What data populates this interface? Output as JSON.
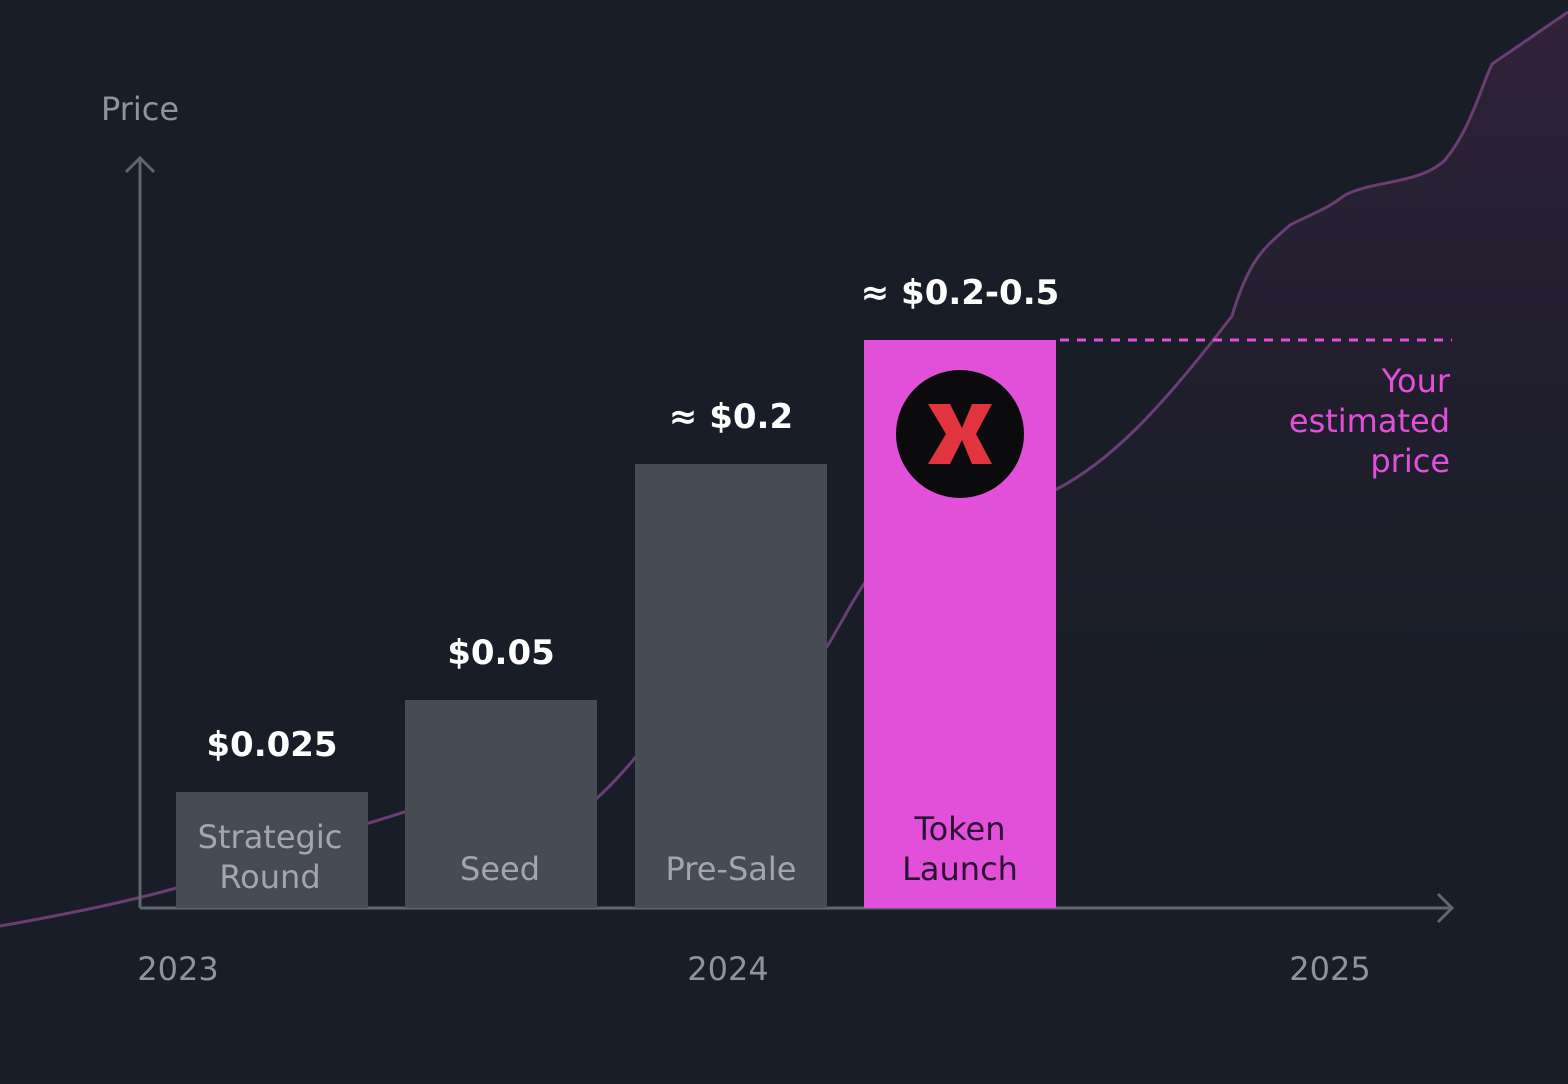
{
  "chart_data": {
    "type": "bar",
    "ylabel": "Price",
    "categories": [
      "Strategic Round",
      "Seed",
      "Pre-Sale",
      "Token Launch"
    ],
    "category_lines": [
      [
        "Strategic",
        "Round"
      ],
      [
        "Seed"
      ],
      [
        "Pre-Sale"
      ],
      [
        "Token",
        "Launch"
      ]
    ],
    "value_labels": [
      "$0.025",
      "$0.05",
      "≈ $0.2",
      "≈ $0.2-0.5"
    ],
    "values": [
      0.025,
      0.05,
      0.2,
      0.5
    ],
    "highlight_index": 3,
    "x_ticks": [
      "2023",
      "2024",
      "2025"
    ],
    "annotation": {
      "lines": [
        "Your",
        "estimated",
        "price"
      ],
      "value": 0.5
    },
    "trend_line": {
      "shown": true,
      "shape": "rising curve"
    },
    "colors": {
      "background": "#181d27",
      "bar": "#474b53",
      "highlight": "#e24fd9",
      "trend": "#6a3e73",
      "axis": "#61656d",
      "logo_bg": "#0b0b0d",
      "logo_mark": "#e2343f"
    },
    "icon": "token-x-logo-icon"
  }
}
